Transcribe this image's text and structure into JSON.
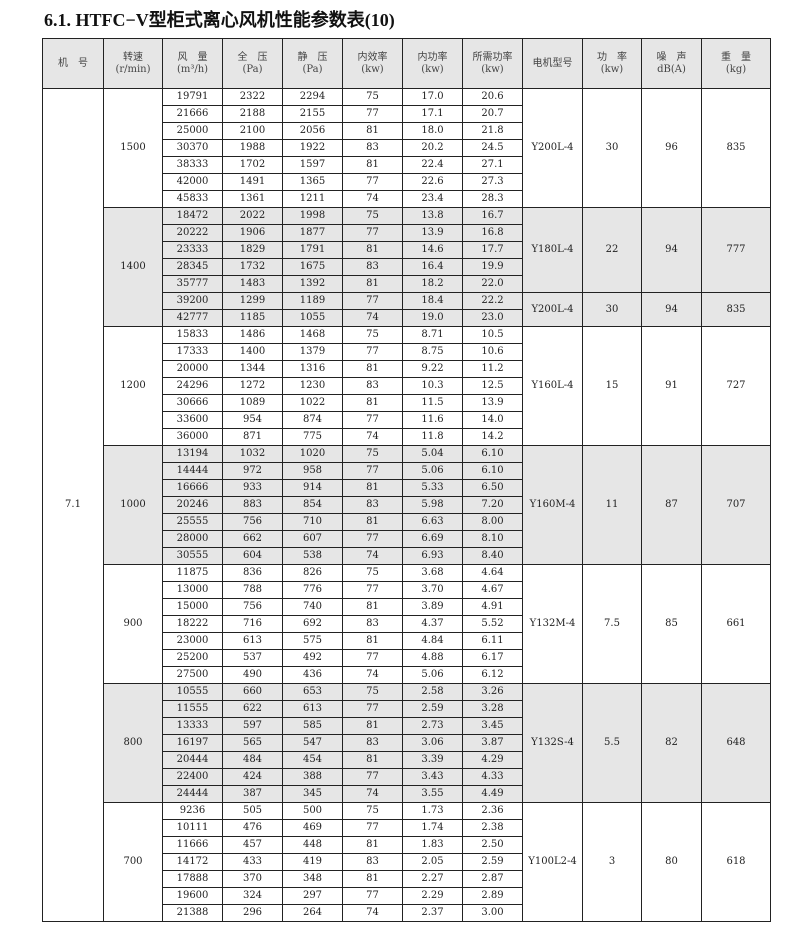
{
  "title": "6.1. HTFC−V型柜式离心风机性能参数表(10)",
  "headers": [
    {
      "label": "机　号",
      "unit": ""
    },
    {
      "label": "转速",
      "unit": "(r/min)"
    },
    {
      "label": "风　量",
      "unit": "(m³/h)"
    },
    {
      "label": "全　压",
      "unit": "(Pa)"
    },
    {
      "label": "静　压",
      "unit": "(Pa)"
    },
    {
      "label": "内效率",
      "unit": "(kw)"
    },
    {
      "label": "内功率",
      "unit": "(kw)"
    },
    {
      "label": "所需功率",
      "unit": "(kw)"
    },
    {
      "label": "电机型号",
      "unit": ""
    },
    {
      "label": "功　率",
      "unit": "(kw)"
    },
    {
      "label": "噪　声",
      "unit": "dB(A)"
    },
    {
      "label": "重　量",
      "unit": "(kg)"
    }
  ],
  "machine_no": "7.1",
  "shade_color": "#e6e6e6",
  "groups": [
    {
      "speed": "1500",
      "shaded": false,
      "rows": [
        [
          "19791",
          "2322",
          "2294",
          "75",
          "17.0",
          "20.6"
        ],
        [
          "21666",
          "2188",
          "2155",
          "77",
          "17.1",
          "20.7"
        ],
        [
          "25000",
          "2100",
          "2056",
          "81",
          "18.0",
          "21.8"
        ],
        [
          "30370",
          "1988",
          "1922",
          "83",
          "20.2",
          "24.5"
        ],
        [
          "38333",
          "1702",
          "1597",
          "81",
          "22.4",
          "27.1"
        ],
        [
          "42000",
          "1491",
          "1365",
          "77",
          "22.6",
          "27.3"
        ],
        [
          "45833",
          "1361",
          "1211",
          "74",
          "23.4",
          "28.3"
        ]
      ],
      "motors": [
        {
          "span": 7,
          "model": "Y200L-4",
          "power": "30",
          "noise": "96",
          "weight": "835"
        }
      ]
    },
    {
      "speed": "1400",
      "shaded": true,
      "rows": [
        [
          "18472",
          "2022",
          "1998",
          "75",
          "13.8",
          "16.7"
        ],
        [
          "20222",
          "1906",
          "1877",
          "77",
          "13.9",
          "16.8"
        ],
        [
          "23333",
          "1829",
          "1791",
          "81",
          "14.6",
          "17.7"
        ],
        [
          "28345",
          "1732",
          "1675",
          "83",
          "16.4",
          "19.9"
        ],
        [
          "35777",
          "1483",
          "1392",
          "81",
          "18.2",
          "22.0"
        ],
        [
          "39200",
          "1299",
          "1189",
          "77",
          "18.4",
          "22.2"
        ],
        [
          "42777",
          "1185",
          "1055",
          "74",
          "19.0",
          "23.0"
        ]
      ],
      "motors": [
        {
          "span": 5,
          "model": "Y180L-4",
          "power": "22",
          "noise": "94",
          "weight": "777"
        },
        {
          "span": 2,
          "model": "Y200L-4",
          "power": "30",
          "noise": "94",
          "weight": "835"
        }
      ]
    },
    {
      "speed": "1200",
      "shaded": false,
      "rows": [
        [
          "15833",
          "1486",
          "1468",
          "75",
          "8.71",
          "10.5"
        ],
        [
          "17333",
          "1400",
          "1379",
          "77",
          "8.75",
          "10.6"
        ],
        [
          "20000",
          "1344",
          "1316",
          "81",
          "9.22",
          "11.2"
        ],
        [
          "24296",
          "1272",
          "1230",
          "83",
          "10.3",
          "12.5"
        ],
        [
          "30666",
          "1089",
          "1022",
          "81",
          "11.5",
          "13.9"
        ],
        [
          "33600",
          "954",
          "874",
          "77",
          "11.6",
          "14.0"
        ],
        [
          "36000",
          "871",
          "775",
          "74",
          "11.8",
          "14.2"
        ]
      ],
      "motors": [
        {
          "span": 7,
          "model": "Y160L-4",
          "power": "15",
          "noise": "91",
          "weight": "727"
        }
      ]
    },
    {
      "speed": "1000",
      "shaded": true,
      "rows": [
        [
          "13194",
          "1032",
          "1020",
          "75",
          "5.04",
          "6.10"
        ],
        [
          "14444",
          "972",
          "958",
          "77",
          "5.06",
          "6.10"
        ],
        [
          "16666",
          "933",
          "914",
          "81",
          "5.33",
          "6.50"
        ],
        [
          "20246",
          "883",
          "854",
          "83",
          "5.98",
          "7.20"
        ],
        [
          "25555",
          "756",
          "710",
          "81",
          "6.63",
          "8.00"
        ],
        [
          "28000",
          "662",
          "607",
          "77",
          "6.69",
          "8.10"
        ],
        [
          "30555",
          "604",
          "538",
          "74",
          "6.93",
          "8.40"
        ]
      ],
      "motors": [
        {
          "span": 7,
          "model": "Y160M-4",
          "power": "11",
          "noise": "87",
          "weight": "707"
        }
      ]
    },
    {
      "speed": "900",
      "shaded": false,
      "rows": [
        [
          "11875",
          "836",
          "826",
          "75",
          "3.68",
          "4.64"
        ],
        [
          "13000",
          "788",
          "776",
          "77",
          "3.70",
          "4.67"
        ],
        [
          "15000",
          "756",
          "740",
          "81",
          "3.89",
          "4.91"
        ],
        [
          "18222",
          "716",
          "692",
          "83",
          "4.37",
          "5.52"
        ],
        [
          "23000",
          "613",
          "575",
          "81",
          "4.84",
          "6.11"
        ],
        [
          "25200",
          "537",
          "492",
          "77",
          "4.88",
          "6.17"
        ],
        [
          "27500",
          "490",
          "436",
          "74",
          "5.06",
          "6.12"
        ]
      ],
      "motors": [
        {
          "span": 7,
          "model": "Y132M-4",
          "power": "7.5",
          "noise": "85",
          "weight": "661"
        }
      ]
    },
    {
      "speed": "800",
      "shaded": true,
      "rows": [
        [
          "10555",
          "660",
          "653",
          "75",
          "2.58",
          "3.26"
        ],
        [
          "11555",
          "622",
          "613",
          "77",
          "2.59",
          "3.28"
        ],
        [
          "13333",
          "597",
          "585",
          "81",
          "2.73",
          "3.45"
        ],
        [
          "16197",
          "565",
          "547",
          "83",
          "3.06",
          "3.87"
        ],
        [
          "20444",
          "484",
          "454",
          "81",
          "3.39",
          "4.29"
        ],
        [
          "22400",
          "424",
          "388",
          "77",
          "3.43",
          "4.33"
        ],
        [
          "24444",
          "387",
          "345",
          "74",
          "3.55",
          "4.49"
        ]
      ],
      "motors": [
        {
          "span": 7,
          "model": "Y132S-4",
          "power": "5.5",
          "noise": "82",
          "weight": "648"
        }
      ]
    },
    {
      "speed": "700",
      "shaded": false,
      "rows": [
        [
          "9236",
          "505",
          "500",
          "75",
          "1.73",
          "2.36"
        ],
        [
          "10111",
          "476",
          "469",
          "77",
          "1.74",
          "2.38"
        ],
        [
          "11666",
          "457",
          "448",
          "81",
          "1.83",
          "2.50"
        ],
        [
          "14172",
          "433",
          "419",
          "83",
          "2.05",
          "2.59"
        ],
        [
          "17888",
          "370",
          "348",
          "81",
          "2.27",
          "2.87"
        ],
        [
          "19600",
          "324",
          "297",
          "77",
          "2.29",
          "2.89"
        ],
        [
          "21388",
          "296",
          "264",
          "74",
          "2.37",
          "3.00"
        ]
      ],
      "motors": [
        {
          "span": 7,
          "model": "Y100L2-4",
          "power": "3",
          "noise": "80",
          "weight": "618"
        }
      ]
    }
  ]
}
